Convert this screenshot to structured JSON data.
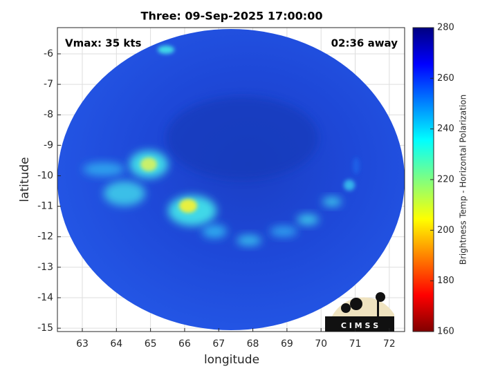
{
  "chart_data": {
    "type": "image",
    "title": "Three: 09-Sep-2025 17:00:00",
    "xlabel": "longitude",
    "ylabel": "latitude",
    "annotations": [
      "Vmax: 35 kts",
      "02:36 away"
    ],
    "xlim": [
      62.27,
      72.45
    ],
    "xticks": [
      63,
      64,
      65,
      66,
      67,
      68,
      69,
      70,
      71,
      72
    ],
    "ylim": [
      -15.11,
      -5.14
    ],
    "yticks": [
      -15,
      -14,
      -13,
      -12,
      -11,
      -10,
      -9,
      -8,
      -7,
      -6
    ],
    "grid": true,
    "colorbar": {
      "label": "Brightness Temp - Horizontal Polarization",
      "lim": [
        160,
        280
      ],
      "ticks": [
        160,
        180,
        200,
        220,
        240,
        260,
        280
      ]
    },
    "logo_text": "C I M S S"
  }
}
